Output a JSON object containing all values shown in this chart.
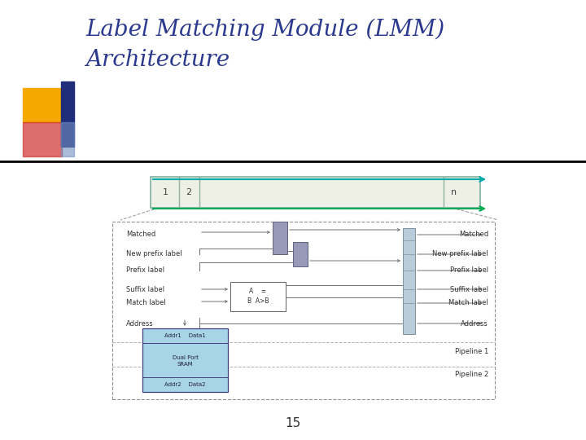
{
  "title_line1": "Label Matching Module (LMM)",
  "title_line2": "Architecture",
  "title_color": "#2B3A8F",
  "title_fontsize": 20,
  "slide_bg": "#FFFFFF",
  "page_number": "15",
  "logo_colors": {
    "yellow": "#F5A800",
    "red": "#D03030",
    "blue": "#1F2D7B",
    "light_blue": "#7090C0",
    "pink": "#E06080"
  },
  "arrow_top_color": "#00AAAA",
  "arrow_bot_color": "#00AA55"
}
